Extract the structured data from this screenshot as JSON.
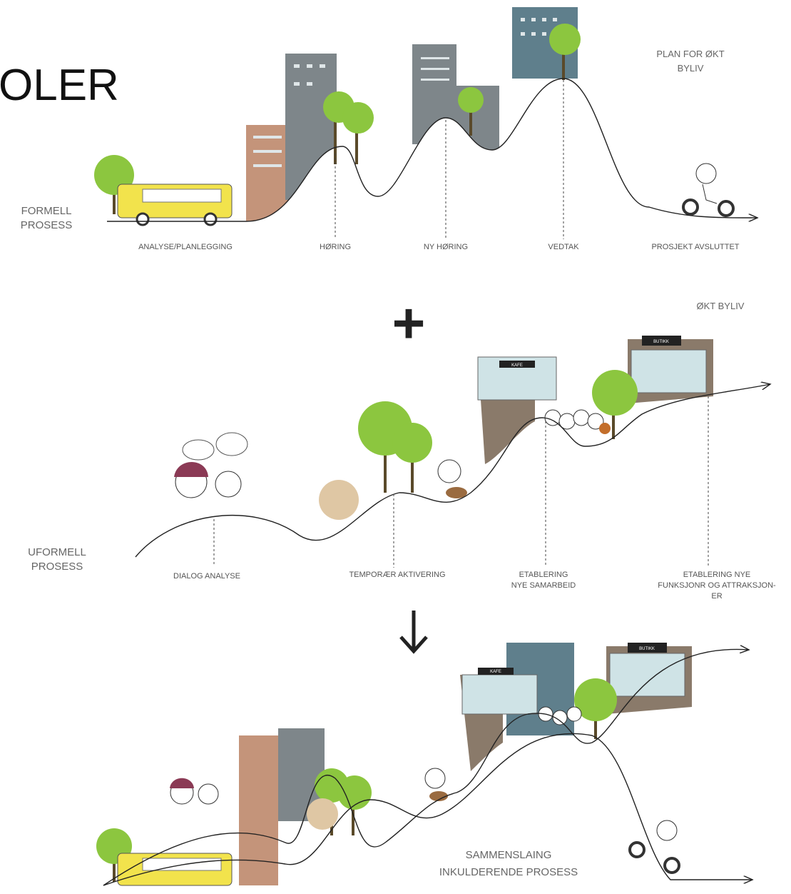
{
  "heading": "OLER",
  "formal": {
    "label": [
      "FORMELL",
      "PROSESS"
    ],
    "goal": [
      "PLAN FOR ØKT",
      "BYLIV"
    ],
    "milestones": [
      "ANALYSE/PLANLEGGING",
      "HØRING",
      "NY HØRING",
      "VEDTAK",
      "PROSJEKT AVSLUTTET"
    ]
  },
  "plus": "+",
  "informal": {
    "label": [
      "UFORMELL",
      "PROSESS"
    ],
    "goal": "ØKT BYLIV",
    "milestones": [
      [
        "DIALOG ANALYSE"
      ],
      [
        "TEMPORÆR AKTIVERING"
      ],
      [
        "ETABLERING",
        "NYE SAMARBEID"
      ],
      [
        "ETABLERING NYE",
        "FUNKSJONR OG ATTRAKSJON-",
        "ER"
      ]
    ],
    "signs": [
      "KAFE",
      "BUTIKK"
    ]
  },
  "combined": {
    "label": [
      "SAMMENSLAING",
      "INKULDERENDE PROSESS"
    ],
    "signs": [
      "KAFE",
      "BUTIKK"
    ]
  }
}
